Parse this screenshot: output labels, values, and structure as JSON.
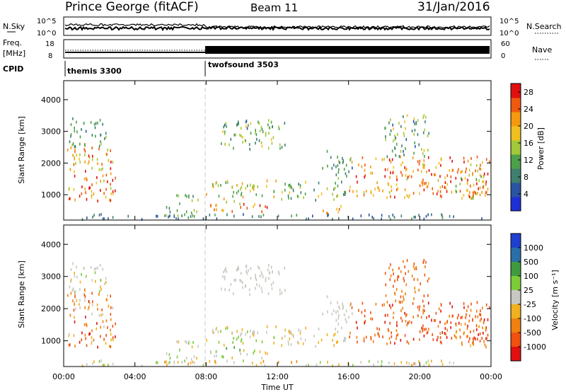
{
  "header": {
    "station": "Prince George (fitACF)",
    "beam": "Beam 11",
    "date": "31/Jan/2016"
  },
  "strips": {
    "nsky_label": "N.Sky",
    "nsky_ticks": [
      "10^5",
      "10^0"
    ],
    "nsearch_label": "N.Search",
    "nsearch_ticks": [
      "10^5",
      "10^0"
    ],
    "freq_label_1": "Freq.",
    "freq_label_2": "[MHz]",
    "freq_ticks": [
      "18",
      "8"
    ],
    "nave_label": "Nave",
    "nave_ticks": [
      "60",
      "0"
    ],
    "cpid_label": "CPID",
    "cpid_modes": [
      {
        "name": "themis 3300",
        "start_hour": 0
      },
      {
        "name": "twofsound 3503",
        "start_hour": 8
      }
    ]
  },
  "chart_data": [
    {
      "type": "heatmap",
      "name": "power",
      "ylabel": "Slant Range [km]",
      "xlabel": "",
      "yticks": [
        "1000",
        "2000",
        "3000",
        "4000"
      ],
      "ylim": [
        200,
        4600
      ],
      "xlim": [
        0,
        24
      ],
      "colorbar": {
        "label": "Power [dB]",
        "ticks": [
          "4",
          "8",
          "12",
          "16",
          "20",
          "24",
          "28"
        ],
        "range": [
          0,
          30
        ],
        "colors": [
          "#1f2fd6",
          "#2b54a3",
          "#3f7f6f",
          "#4ea04a",
          "#a3c83a",
          "#f0c020",
          "#f59a10",
          "#f05a10",
          "#e01010"
        ]
      },
      "regions": [
        {
          "t": [
            0.1,
            2.9
          ],
          "r": [
            800,
            2600
          ],
          "v": [
            14,
            30
          ]
        },
        {
          "t": [
            0.3,
            2.5
          ],
          "r": [
            2500,
            3400
          ],
          "v": [
            6,
            14
          ]
        },
        {
          "t": [
            5.7,
            7.6
          ],
          "r": [
            300,
            1100
          ],
          "v": [
            6,
            16
          ]
        },
        {
          "t": [
            7.8,
            11.9
          ],
          "r": [
            850,
            1450
          ],
          "v": [
            10,
            22
          ]
        },
        {
          "t": [
            8.0,
            11.6
          ],
          "r": [
            450,
            800
          ],
          "v": [
            14,
            28
          ]
        },
        {
          "t": [
            8.8,
            12.4
          ],
          "r": [
            2400,
            3350
          ],
          "v": [
            6,
            18
          ]
        },
        {
          "t": [
            12.2,
            15.8
          ],
          "r": [
            800,
            1400
          ],
          "v": [
            8,
            18
          ]
        },
        {
          "t": [
            14.5,
            16.2
          ],
          "r": [
            1500,
            2400
          ],
          "v": [
            6,
            14
          ]
        },
        {
          "t": [
            14.2,
            15.8
          ],
          "r": [
            380,
            700
          ],
          "v": [
            16,
            28
          ]
        },
        {
          "t": [
            16.0,
            23.9
          ],
          "r": [
            900,
            2200
          ],
          "v": [
            16,
            30
          ]
        },
        {
          "t": [
            18.0,
            20.5
          ],
          "r": [
            2200,
            3500
          ],
          "v": [
            6,
            18
          ]
        },
        {
          "t": [
            22.0,
            23.9
          ],
          "r": [
            800,
            1800
          ],
          "v": [
            10,
            24
          ]
        },
        {
          "t": [
            0.5,
            23.5
          ],
          "r": [
            220,
            380
          ],
          "v": [
            4,
            12
          ]
        }
      ]
    },
    {
      "type": "heatmap",
      "name": "velocity",
      "ylabel": "Slant Range [km]",
      "xlabel": "Time UT",
      "xticks": [
        "00:00",
        "04:00",
        "08:00",
        "12:00",
        "16:00",
        "20:00",
        "00:00"
      ],
      "yticks": [
        "1000",
        "2000",
        "3000",
        "4000"
      ],
      "ylim": [
        200,
        4600
      ],
      "xlim": [
        0,
        24
      ],
      "colorbar": {
        "label": "Velocity [m s⁻¹]",
        "ticks": [
          "1000",
          "500",
          "100",
          "25",
          "-25",
          "-100",
          "-500",
          "-1000"
        ],
        "colors": [
          "#1f3fd0",
          "#2a6fa8",
          "#3f9a3f",
          "#7ccc3a",
          "#c8c8c0",
          "#f0b020",
          "#f08010",
          "#f05010",
          "#e01010"
        ]
      },
      "regions": [
        {
          "t": [
            0.1,
            2.9
          ],
          "r": [
            800,
            2600
          ],
          "v": [
            4,
            8
          ]
        },
        {
          "t": [
            0.3,
            2.5
          ],
          "r": [
            2500,
            3400
          ],
          "v": [
            3,
            5
          ]
        },
        {
          "t": [
            5.7,
            7.6
          ],
          "r": [
            300,
            1100
          ],
          "v": [
            2,
            5
          ]
        },
        {
          "t": [
            7.8,
            11.9
          ],
          "r": [
            850,
            1450
          ],
          "v": [
            3,
            5
          ]
        },
        {
          "t": [
            8.0,
            11.6
          ],
          "r": [
            450,
            800
          ],
          "v": [
            2,
            5
          ]
        },
        {
          "t": [
            8.8,
            12.4
          ],
          "r": [
            2400,
            3350
          ],
          "v": [
            4,
            4
          ]
        },
        {
          "t": [
            12.2,
            15.8
          ],
          "r": [
            800,
            1400
          ],
          "v": [
            4,
            5
          ]
        },
        {
          "t": [
            14.5,
            16.2
          ],
          "r": [
            1500,
            2400
          ],
          "v": [
            4,
            4
          ]
        },
        {
          "t": [
            16.0,
            23.9
          ],
          "r": [
            900,
            2200
          ],
          "v": [
            6,
            8
          ]
        },
        {
          "t": [
            18.0,
            20.5
          ],
          "r": [
            2200,
            3500
          ],
          "v": [
            6,
            7
          ]
        },
        {
          "t": [
            22.0,
            23.9
          ],
          "r": [
            800,
            1800
          ],
          "v": [
            5,
            7
          ]
        },
        {
          "t": [
            0.5,
            23.5
          ],
          "r": [
            220,
            380
          ],
          "v": [
            3,
            6
          ]
        }
      ]
    }
  ]
}
